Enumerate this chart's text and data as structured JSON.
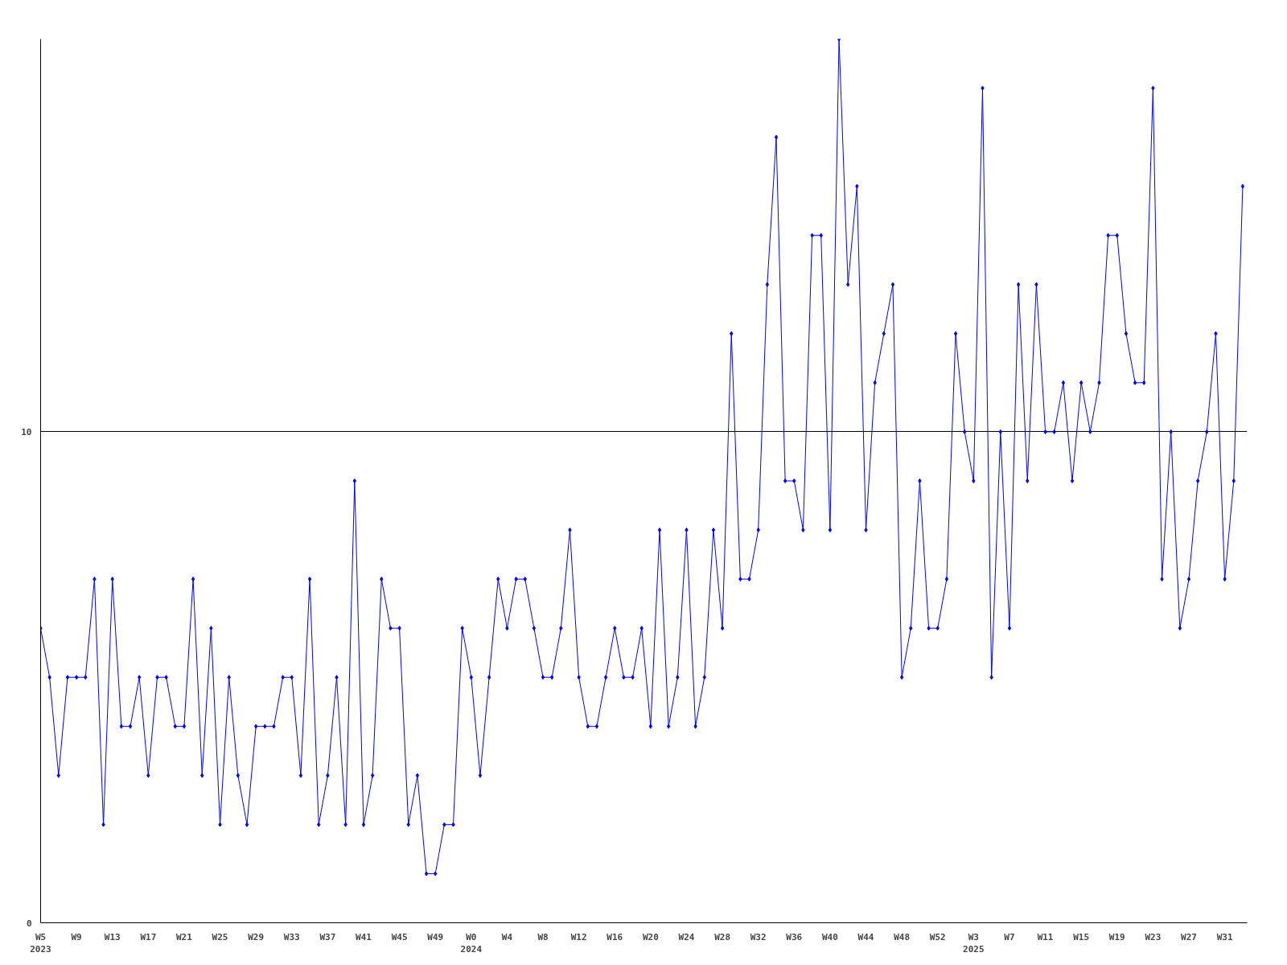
{
  "chart_data": {
    "type": "line",
    "marker": "diamond",
    "grid": "y",
    "line_style": "solid",
    "categories": [
      "W5\n2023",
      null,
      null,
      null,
      "W9",
      null,
      null,
      null,
      "W13",
      null,
      null,
      null,
      "W17",
      null,
      null,
      null,
      "W21",
      null,
      null,
      null,
      "W25",
      null,
      null,
      null,
      "W29",
      null,
      null,
      null,
      "W33",
      null,
      null,
      null,
      "W37",
      null,
      null,
      null,
      "W41",
      null,
      null,
      null,
      "W45",
      null,
      null,
      null,
      "W49",
      null,
      null,
      null,
      "W0\n2024",
      null,
      null,
      null,
      "W4",
      null,
      null,
      null,
      "W8",
      null,
      null,
      null,
      "W12",
      null,
      null,
      null,
      "W16",
      null,
      null,
      null,
      "W20",
      null,
      null,
      null,
      "W24",
      null,
      null,
      null,
      "W28",
      null,
      null,
      null,
      "W32",
      null,
      null,
      null,
      "W36",
      null,
      null,
      null,
      "W40",
      null,
      null,
      null,
      "W44",
      null,
      null,
      null,
      "W48",
      null,
      null,
      null,
      "W52",
      null,
      null,
      null,
      "W3\n2025",
      null,
      null,
      null,
      "W7",
      null,
      null,
      null,
      "W11",
      null,
      null,
      null,
      "W15",
      null,
      null,
      null,
      "W19",
      null,
      null,
      null,
      "W23",
      null,
      null,
      null,
      "W27",
      null,
      null,
      null,
      "W31",
      null,
      null
    ],
    "series": [
      {
        "color": "#0000ff",
        "values": [
          6,
          5,
          3,
          5,
          5,
          5,
          7,
          2,
          7,
          4,
          4,
          5,
          3,
          5,
          5,
          4,
          4,
          7,
          3,
          6,
          2,
          5,
          3,
          2,
          4,
          4,
          4,
          5,
          5,
          3,
          7,
          2,
          3,
          5,
          2,
          9,
          2,
          3,
          7,
          6,
          6,
          2,
          3,
          1,
          1,
          2,
          2,
          6,
          5,
          3,
          5,
          7,
          6,
          7,
          7,
          6,
          5,
          5,
          6,
          8,
          5,
          4,
          4,
          5,
          6,
          5,
          5,
          6,
          4,
          8,
          4,
          5,
          8,
          4,
          5,
          8,
          6,
          12,
          7,
          7,
          8,
          13,
          16,
          9,
          9,
          8,
          14,
          14,
          8,
          18,
          13,
          15,
          8,
          11,
          12,
          13,
          5,
          6,
          9,
          6,
          6,
          7,
          12,
          10,
          9,
          17,
          5,
          10,
          6,
          13,
          9,
          13,
          10,
          10,
          11,
          9,
          11,
          10,
          11,
          14,
          14,
          12,
          11,
          11,
          17,
          7,
          10,
          6,
          7,
          9,
          10,
          12,
          7,
          9,
          15
        ]
      }
    ],
    "ylim": [
      0,
      18
    ],
    "yticks": [
      0,
      10
    ]
  }
}
